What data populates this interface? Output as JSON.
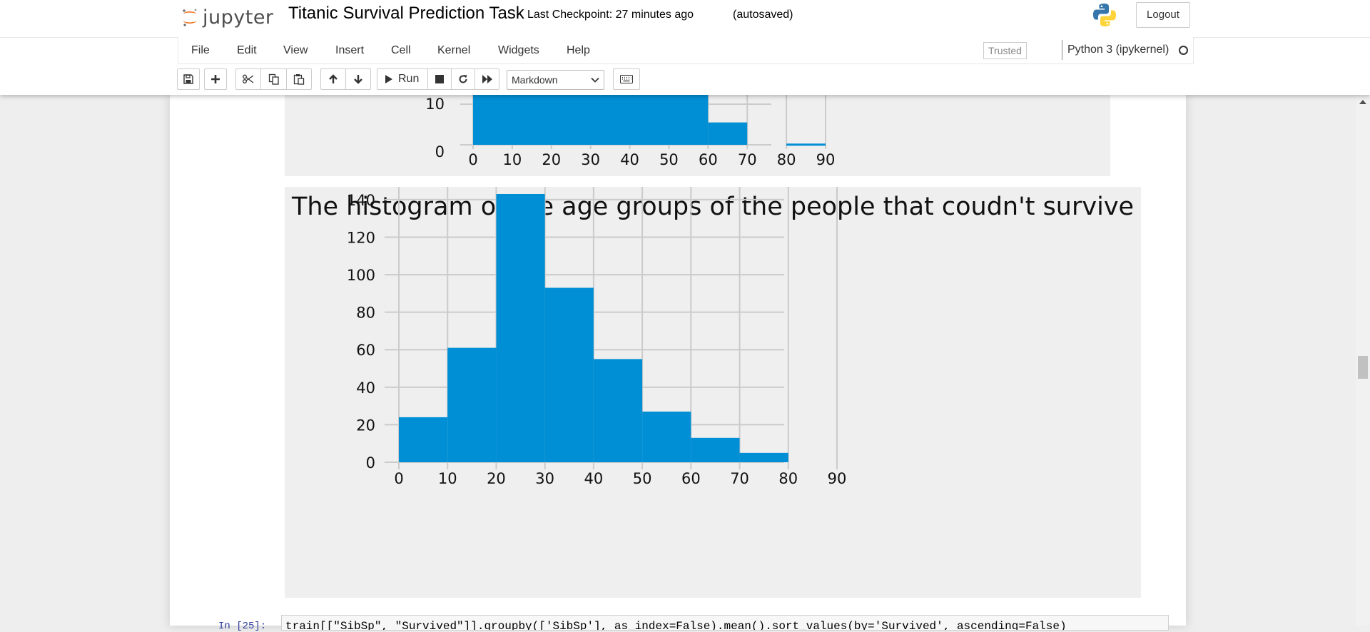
{
  "app": {
    "logo_text": "jupyter",
    "notebook_title": "Titanic Survival Prediction Task",
    "checkpoint": "Last Checkpoint: 27 minutes ago",
    "autosave_status": "(autosaved)",
    "logout_label": "Logout",
    "trusted_label": "Trusted",
    "kernel_name": "Python 3 (ipykernel)"
  },
  "menu": {
    "items": [
      "File",
      "Edit",
      "View",
      "Insert",
      "Cell",
      "Kernel",
      "Widgets",
      "Help"
    ]
  },
  "toolbar": {
    "run_label": "Run",
    "cell_type": "Markdown",
    "icons": [
      "save-icon",
      "plus-icon",
      "cut-icon",
      "copy-icon",
      "paste-icon",
      "arrow-up-icon",
      "arrow-down-icon",
      "play-icon",
      "stop-icon",
      "restart-icon",
      "fast-forward-icon",
      "keyboard-icon"
    ]
  },
  "colors": {
    "bar": "#008fd5",
    "plot_bg": "#efefef",
    "grid": "#cbcbcb"
  },
  "chart_data": [
    {
      "type": "bar",
      "title": "",
      "x_ticks": [
        0,
        10,
        20,
        30,
        40,
        50,
        60,
        70,
        80,
        90
      ],
      "y_ticks": [
        0,
        10
      ],
      "bins": [
        [
          0,
          10
        ],
        [
          10,
          20
        ],
        [
          20,
          30
        ],
        [
          30,
          40
        ],
        [
          40,
          50
        ],
        [
          50,
          60
        ],
        [
          60,
          70
        ],
        [
          70,
          80
        ],
        [
          80,
          90
        ]
      ],
      "values": [
        null,
        null,
        null,
        null,
        null,
        null,
        5.5,
        0,
        0.3
      ],
      "note_visible": "partially scrolled out of view"
    },
    {
      "type": "bar",
      "title": "The histogram of the age groups of the people that coudn't survive",
      "xlabel": "",
      "ylabel": "",
      "x_ticks": [
        0,
        10,
        20,
        30,
        40,
        50,
        60,
        70,
        80,
        90
      ],
      "y_ticks": [
        0,
        20,
        40,
        60,
        80,
        100,
        120,
        140
      ],
      "xlim": [
        0,
        90
      ],
      "ylim": [
        0,
        143
      ],
      "bins": [
        [
          0,
          10
        ],
        [
          10,
          20
        ],
        [
          20,
          30
        ],
        [
          30,
          40
        ],
        [
          40,
          50
        ],
        [
          50,
          60
        ],
        [
          60,
          70
        ],
        [
          70,
          80
        ]
      ],
      "values": [
        24,
        61,
        143,
        93,
        55,
        27,
        13,
        5
      ],
      "grid": true
    }
  ],
  "next_cell": {
    "prompt": "In [25]:",
    "code": "train[[\"SibSp\", \"Survived\"]].groupby(['SibSp'], as_index=False).mean().sort_values(by='Survived', ascending=False)"
  }
}
